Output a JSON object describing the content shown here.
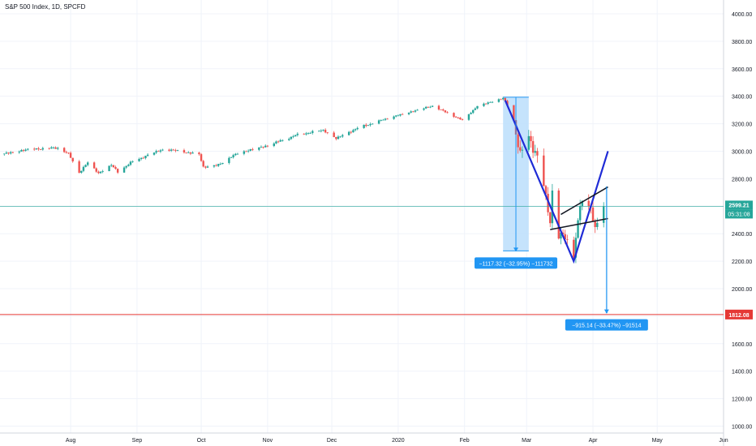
{
  "chart_data": {
    "type": "candlestick",
    "title": "S&P 500 Index, 1D, SPCFD",
    "y_axis": {
      "range": [
        950,
        4100
      ],
      "ticks": [
        1000,
        1200,
        1400,
        1600,
        1800,
        2000,
        2200,
        2400,
        2600,
        2800,
        3000,
        3200,
        3400,
        3600,
        3800,
        4000
      ],
      "tick_labels": [
        "1000.00",
        "1200.00",
        "1400.00",
        "1600.00",
        "1800.00",
        "2000.00",
        "2200.00",
        "2400.00",
        "2600.00",
        "2800.00",
        "3000.00",
        "3200.00",
        "3400.00",
        "3600.00",
        "3800.00",
        "4000.00"
      ]
    },
    "x_axis": {
      "range": [
        "2019-06-29",
        "2020-06-01"
      ],
      "ticks": [
        "2019-08-01",
        "2019-09-01",
        "2019-10-01",
        "2019-11-01",
        "2019-12-01",
        "2020-01-01",
        "2020-02-01",
        "2020-03-01",
        "2020-04-01",
        "2020-05-01",
        "2020-06-01"
      ],
      "tick_labels": [
        "Aug",
        "Sep",
        "Oct",
        "Nov",
        "Dec",
        "2020",
        "Feb",
        "Mar",
        "Apr",
        "May",
        "Jun"
      ]
    },
    "grid": true,
    "candle_colors": {
      "up": "#26a69a",
      "down": "#ef5350"
    },
    "price_path": [
      [
        "2019-06-29",
        2975
      ],
      [
        "2019-07-12",
        3013
      ],
      [
        "2019-07-26",
        3025
      ],
      [
        "2019-07-31",
        2980
      ],
      [
        "2019-08-05",
        2845
      ],
      [
        "2019-08-09",
        2918
      ],
      [
        "2019-08-14",
        2840
      ],
      [
        "2019-08-20",
        2900
      ],
      [
        "2019-08-23",
        2850
      ],
      [
        "2019-08-30",
        2926
      ],
      [
        "2019-09-12",
        3009
      ],
      [
        "2019-09-19",
        3006
      ],
      [
        "2019-09-30",
        2976
      ],
      [
        "2019-10-02",
        2887
      ],
      [
        "2019-10-08",
        2893
      ],
      [
        "2019-10-18",
        2986
      ],
      [
        "2019-10-31",
        3037
      ],
      [
        "2019-11-15",
        3120
      ],
      [
        "2019-11-27",
        3153
      ],
      [
        "2019-12-03",
        3093
      ],
      [
        "2019-12-13",
        3168
      ],
      [
        "2019-12-27",
        3240
      ],
      [
        "2020-01-17",
        3330
      ],
      [
        "2020-01-31",
        3225
      ],
      [
        "2020-02-07",
        3328
      ],
      [
        "2020-02-19",
        3386
      ],
      [
        "2020-02-21",
        3337
      ],
      [
        "2020-02-24",
        3225
      ],
      [
        "2020-02-27",
        2978
      ],
      [
        "2020-03-02",
        3090
      ],
      [
        "2020-03-06",
        2972
      ],
      [
        "2020-03-09",
        2746
      ],
      [
        "2020-03-12",
        2480
      ],
      [
        "2020-03-13",
        2711
      ],
      [
        "2020-03-16",
        2386
      ],
      [
        "2020-03-18",
        2398
      ],
      [
        "2020-03-23",
        2237
      ],
      [
        "2020-03-26",
        2630
      ],
      [
        "2020-03-31",
        2584
      ],
      [
        "2020-04-01",
        2470
      ],
      [
        "2020-04-03",
        2489
      ],
      [
        "2020-04-06",
        2599
      ]
    ],
    "last_price": {
      "value": 2599.21,
      "label": "2599.21",
      "countdown": "05:31:08",
      "color": "#26a69a"
    },
    "target_line": {
      "value": 1812.08,
      "label": "1812.08",
      "color": "#e53935"
    },
    "drawings": {
      "color": "#1f2bd6",
      "v_shape": [
        [
          "2020-02-20",
          3370
        ],
        [
          "2020-03-23",
          2200
        ],
        [
          "2020-04-08",
          3000
        ]
      ],
      "channel_upper": [
        [
          "2020-03-17",
          2540
        ],
        [
          "2020-04-08",
          2740
        ]
      ],
      "channel_lower": [
        [
          "2020-03-12",
          2430
        ],
        [
          "2020-04-08",
          2510
        ]
      ]
    },
    "measures": [
      {
        "label": "−1117.32 (−32.95%) −111732",
        "from_date": "2020-02-19",
        "to_date": "2020-03-02",
        "from_value": 3393,
        "to_value": 2275,
        "fill": "#bbdefb",
        "color": "#2196f3"
      },
      {
        "label": "−915.14 (−33.47%) −91514",
        "from_date": "2020-04-07",
        "to_date": "2020-04-07",
        "from_value": 2740,
        "to_value": 1825,
        "fill": "#bbdefb",
        "color": "#2196f3"
      }
    ]
  }
}
